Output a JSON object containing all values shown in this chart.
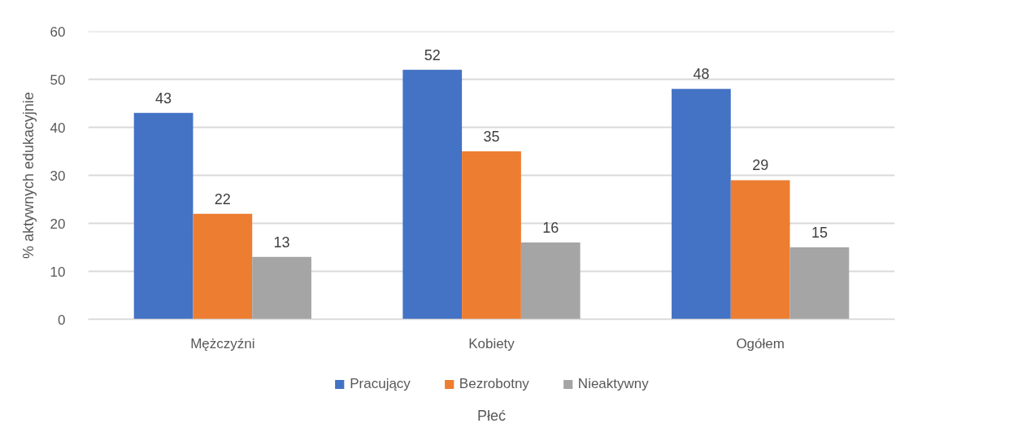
{
  "chart_data": {
    "type": "bar",
    "xlabel": "Płeć",
    "ylabel": "% aktywnych edukacyjnie",
    "categories": [
      "Mężczyźni",
      "Kobiety",
      "Ogółem"
    ],
    "series": [
      {
        "name": "Pracujący",
        "color": "#4472c4",
        "values": [
          43,
          52,
          48
        ]
      },
      {
        "name": "Bezrobotny",
        "color": "#ed7d31",
        "values": [
          22,
          35,
          29
        ]
      },
      {
        "name": "Nieaktywny",
        "color": "#a5a5a5",
        "values": [
          13,
          16,
          15
        ]
      }
    ],
    "ylim": [
      0,
      60
    ],
    "yticks": [
      0,
      10,
      20,
      30,
      40,
      50,
      60
    ],
    "grid": "y",
    "legend": "bottom",
    "data_labels": true
  }
}
